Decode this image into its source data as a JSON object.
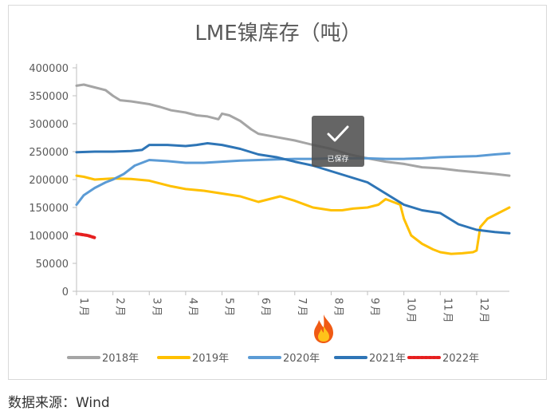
{
  "chart_data": {
    "type": "line",
    "title": "LME镍库存（吨）",
    "yticks": [
      "0",
      "50000",
      "100000",
      "150000",
      "200000",
      "250000",
      "300000",
      "350000",
      "400000"
    ],
    "ylim": [
      0,
      400000
    ],
    "xlim": [
      1,
      12.9
    ],
    "month_labels": [
      {
        "num": "1",
        "unit": "月"
      },
      {
        "num": "2",
        "unit": "月"
      },
      {
        "num": "3",
        "unit": "月"
      },
      {
        "num": "4",
        "unit": "月"
      },
      {
        "num": "5",
        "unit": "月"
      },
      {
        "num": "6",
        "unit": "月"
      },
      {
        "num": "7",
        "unit": "月"
      },
      {
        "num": "8",
        "unit": "月"
      },
      {
        "num": "9",
        "unit": "月"
      },
      {
        "num": "10",
        "unit": "月"
      },
      {
        "num": "11",
        "unit": "月"
      },
      {
        "num": "12",
        "unit": "月"
      }
    ],
    "grid": false,
    "legend_position": "bottom",
    "series": [
      {
        "name": "2018年",
        "color": "#a5a5a5",
        "dash": "solid",
        "x": [
          1,
          1.2,
          1.5,
          1.8,
          2.0,
          2.2,
          2.5,
          3.0,
          3.3,
          3.6,
          4.0,
          4.3,
          4.6,
          4.9,
          5.0,
          5.2,
          5.5,
          5.8,
          6.0,
          6.5,
          7.0,
          7.5,
          8.0,
          8.5,
          9.0,
          9.5,
          10.0,
          10.5,
          11.0,
          11.5,
          12.0,
          12.5,
          12.9
        ],
        "y": [
          368000,
          370000,
          365000,
          360000,
          350000,
          342000,
          340000,
          335000,
          330000,
          324000,
          320000,
          315000,
          313000,
          308000,
          318000,
          315000,
          305000,
          290000,
          282000,
          276000,
          270000,
          262000,
          255000,
          245000,
          238000,
          232000,
          228000,
          222000,
          220000,
          216000,
          213000,
          210000,
          207000
        ]
      },
      {
        "name": "2019年",
        "color": "#ffc000",
        "dash": "solid",
        "x": [
          1,
          1.2,
          1.5,
          2.0,
          2.5,
          3.0,
          3.3,
          3.6,
          4.0,
          4.5,
          5.0,
          5.5,
          6.0,
          6.3,
          6.6,
          7.0,
          7.5,
          8.0,
          8.3,
          8.6,
          9.0,
          9.3,
          9.5,
          9.7,
          9.9,
          10.0,
          10.2,
          10.5,
          10.8,
          11.0,
          11.3,
          11.6,
          11.9,
          12.0,
          12.1,
          12.3,
          12.6,
          12.9
        ],
        "y": [
          207000,
          205000,
          200000,
          202000,
          201000,
          198000,
          193000,
          188000,
          183000,
          180000,
          175000,
          170000,
          160000,
          165000,
          170000,
          162000,
          150000,
          145000,
          145000,
          148000,
          150000,
          155000,
          165000,
          160000,
          155000,
          130000,
          100000,
          85000,
          75000,
          70000,
          67000,
          68000,
          70000,
          73000,
          115000,
          130000,
          140000,
          150000
        ]
      },
      {
        "name": "2020年",
        "color": "#5b9bd5",
        "dash": "solid",
        "x": [
          1,
          1.2,
          1.5,
          1.8,
          2.0,
          2.3,
          2.6,
          3.0,
          3.5,
          4.0,
          4.5,
          5.0,
          5.5,
          6.0,
          6.5,
          7.0,
          7.5,
          8.0,
          8.5,
          9.0,
          9.5,
          10.0,
          10.5,
          11.0,
          11.5,
          12.0,
          12.5,
          12.9
        ],
        "y": [
          155000,
          172000,
          185000,
          195000,
          200000,
          210000,
          225000,
          235000,
          233000,
          230000,
          230000,
          232000,
          234000,
          235000,
          236000,
          237000,
          237000,
          238000,
          238000,
          238000,
          237000,
          237000,
          238000,
          240000,
          241000,
          242000,
          245000,
          247000
        ]
      },
      {
        "name": "2021年",
        "color": "#2e75b6",
        "dash": "solid",
        "x": [
          1,
          1.5,
          2.0,
          2.5,
          2.8,
          3.0,
          3.5,
          4.0,
          4.3,
          4.6,
          5.0,
          5.5,
          6.0,
          6.5,
          7.0,
          7.5,
          8.0,
          8.5,
          9.0,
          9.5,
          10.0,
          10.5,
          11.0,
          11.5,
          12.0,
          12.5,
          12.9
        ],
        "y": [
          249000,
          250000,
          250000,
          251000,
          253000,
          262000,
          262000,
          260000,
          262000,
          265000,
          262000,
          255000,
          245000,
          240000,
          232000,
          225000,
          215000,
          205000,
          195000,
          175000,
          155000,
          145000,
          140000,
          120000,
          110000,
          106000,
          104000
        ]
      },
      {
        "name": "2022年",
        "color": "#e61f1f",
        "dash": "dotted",
        "x": [
          1,
          1.1,
          1.2,
          1.3,
          1.4,
          1.5
        ],
        "y": [
          103000,
          102000,
          101000,
          100000,
          98000,
          96000
        ]
      }
    ]
  },
  "overlay": {
    "saved_label": "已保存"
  },
  "source_label": "数据来源：Wind"
}
